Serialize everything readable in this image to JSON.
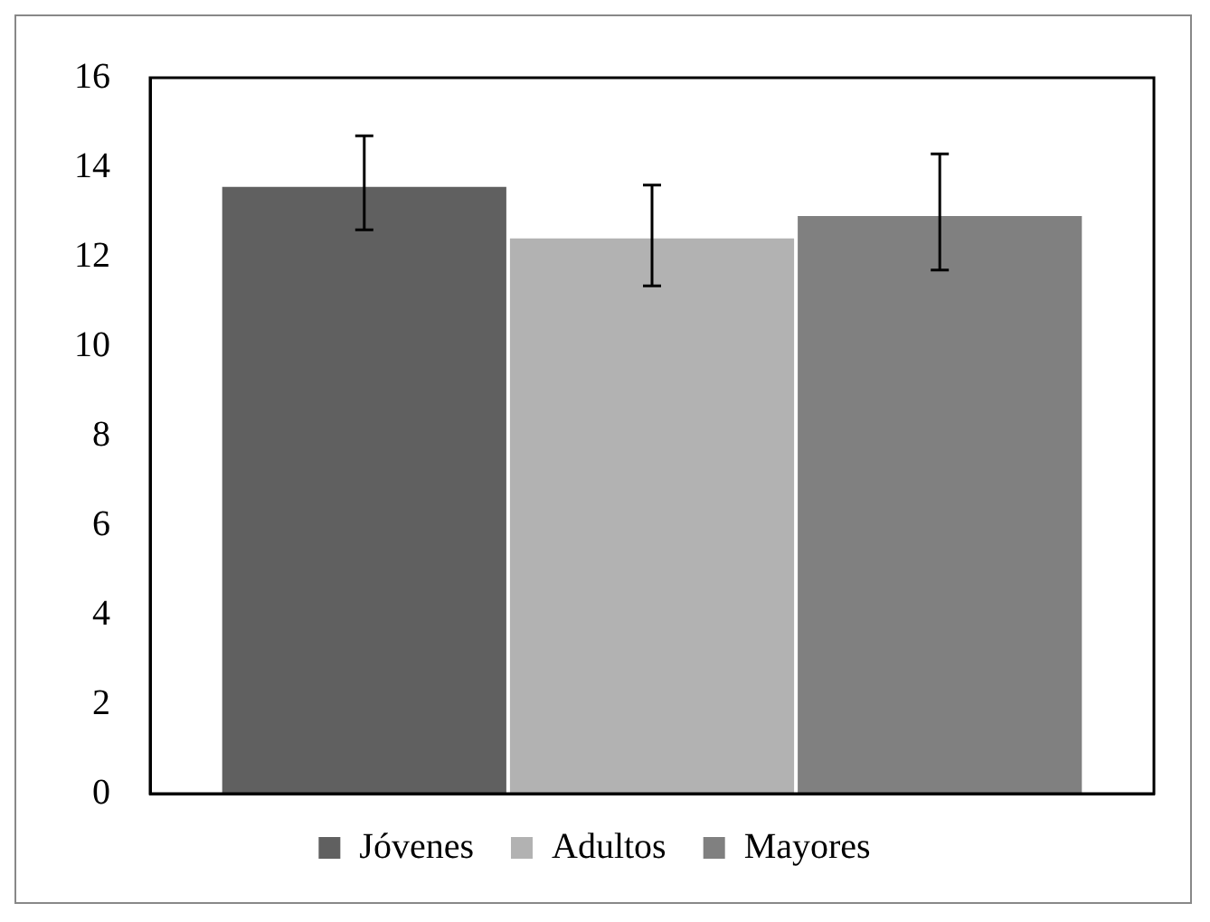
{
  "chart_data": {
    "type": "bar",
    "categories": [
      null
    ],
    "series": [
      {
        "name": "Jóvenes",
        "color": "#606060",
        "values": [
          13.6
        ],
        "errors": [
          [
            12.6,
            14.7
          ]
        ]
      },
      {
        "name": "Adultos",
        "color": "#b2b2b2",
        "values": [
          12.45
        ],
        "errors": [
          [
            11.35,
            13.6
          ]
        ]
      },
      {
        "name": "Mayores",
        "color": "#808080",
        "values": [
          12.95
        ],
        "errors": [
          [
            11.7,
            14.3
          ]
        ]
      }
    ],
    "ylim": [
      0,
      16
    ],
    "yticks": [
      0,
      2,
      4,
      6,
      8,
      10,
      12,
      14,
      16
    ],
    "grid": false,
    "legend": "bottom"
  }
}
